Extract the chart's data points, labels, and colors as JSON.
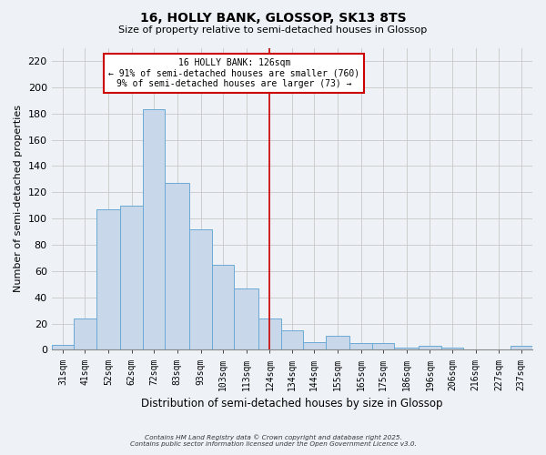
{
  "title": "16, HOLLY BANK, GLOSSOP, SK13 8TS",
  "subtitle": "Size of property relative to semi-detached houses in Glossop",
  "xlabel": "Distribution of semi-detached houses by size in Glossop",
  "ylabel": "Number of semi-detached properties",
  "bar_values": [
    4,
    24,
    107,
    110,
    183,
    127,
    92,
    65,
    47,
    24,
    15,
    6,
    11,
    5,
    5,
    2,
    3,
    2,
    0,
    0,
    3
  ],
  "bar_labels": [
    "31sqm",
    "41sqm",
    "52sqm",
    "62sqm",
    "72sqm",
    "83sqm",
    "93sqm",
    "103sqm",
    "113sqm",
    "124sqm",
    "134sqm",
    "144sqm",
    "155sqm",
    "165sqm",
    "175sqm",
    "186sqm",
    "196sqm",
    "206sqm",
    "216sqm",
    "227sqm",
    "237sqm"
  ],
  "bin_edges": [
    26,
    36,
    46,
    57,
    67,
    77,
    88,
    98,
    108,
    119,
    129,
    139,
    149,
    160,
    170,
    180,
    191,
    201,
    211,
    222,
    232,
    242
  ],
  "bar_color": "#c8d8ea",
  "bar_edge_color": "#6aaad4",
  "vline_x": 124,
  "vline_color": "#cc0000",
  "annotation_title": "16 HOLLY BANK: 126sqm",
  "annotation_line1": "← 91% of semi-detached houses are smaller (760)",
  "annotation_line2": "9% of semi-detached houses are larger (73) →",
  "annotation_box_color": "#cc0000",
  "ylim": [
    0,
    230
  ],
  "yticks": [
    0,
    20,
    40,
    60,
    80,
    100,
    120,
    140,
    160,
    180,
    200,
    220
  ],
  "bg_color": "#eef2f7",
  "grid_color": "#c8c8c8",
  "footer1": "Contains HM Land Registry data © Crown copyright and database right 2025.",
  "footer2": "Contains public sector information licensed under the Open Government Licence v3.0."
}
